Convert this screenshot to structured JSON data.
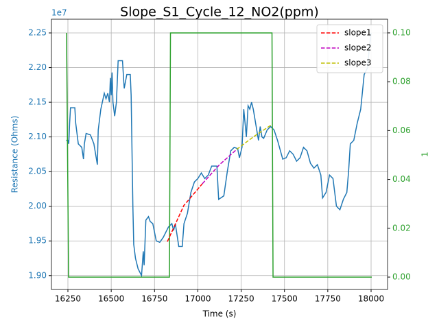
{
  "chart_data": {
    "type": "line",
    "title": "Slope_S1_Cycle_12_NO2(ppm)",
    "xlabel": "Time (s)",
    "ylabel": "Resistance (Ohms)",
    "y2label": "1",
    "y_offset_label": "1e7",
    "grid": true,
    "legend": "upper right",
    "xlim": [
      16155,
      18095
    ],
    "ylim": [
      1.88,
      2.2698
    ],
    "y2lim": [
      -0.00506,
      0.1056
    ],
    "xticks": [
      16250,
      16500,
      16750,
      17000,
      17250,
      17500,
      17750,
      18000
    ],
    "yticks": [
      {
        "value": 1.9,
        "label": "1.90"
      },
      {
        "value": 1.95,
        "label": "1.95"
      },
      {
        "value": 2.0,
        "label": "2.00"
      },
      {
        "value": 2.05,
        "label": "2.05"
      },
      {
        "value": 2.1,
        "label": "2.10"
      },
      {
        "value": 2.15,
        "label": "2.15"
      },
      {
        "value": 2.2,
        "label": "2.20"
      },
      {
        "value": 2.25,
        "label": "2.25"
      }
    ],
    "y2ticks": [
      {
        "value": 0,
        "label": "0.00"
      },
      {
        "value": 0.02,
        "label": "0.02"
      },
      {
        "value": 0.04,
        "label": "0.04"
      },
      {
        "value": 0.06,
        "label": "0.06"
      },
      {
        "value": 0.08,
        "label": "0.08"
      },
      {
        "value": 0.1,
        "label": "0.10"
      }
    ],
    "series": [
      {
        "color": "#1f77b4",
        "dash": false,
        "x": [
          16240,
          16250,
          16255,
          16260,
          16265,
          16290,
          16295,
          16310,
          16330,
          16340,
          16345,
          16355,
          16380,
          16400,
          16410,
          16420,
          16425,
          16440,
          16460,
          16470,
          16480,
          16490,
          16495,
          16500,
          16505,
          16510,
          16520,
          16530,
          16540,
          16565,
          16575,
          16590,
          16610,
          16615,
          16625,
          16630,
          16640,
          16655,
          16665,
          16675,
          16685,
          16690,
          16700,
          16715,
          16725,
          16740,
          16760,
          16780,
          16800,
          16830,
          16850,
          16860,
          16870,
          16890,
          16910,
          16920,
          16940,
          16960,
          16980,
          17000,
          17020,
          17040,
          17060,
          17080,
          17110,
          17120,
          17150,
          17170,
          17190,
          17210,
          17230,
          17240,
          17255,
          17265,
          17280,
          17290,
          17300,
          17310,
          17320,
          17340,
          17350,
          17360,
          17370,
          17380,
          17400,
          17420,
          17440,
          17460,
          17490,
          17510,
          17530,
          17550,
          17570,
          17590,
          17610,
          17630,
          17650,
          17670,
          17690,
          17710,
          17720,
          17740,
          17760,
          17780,
          17800,
          17820,
          17840,
          17860,
          17870,
          17880,
          17900,
          17920,
          17940,
          17960,
          17980,
          17990,
          18000
        ],
        "values": [
          2.095,
          2.095,
          2.09,
          2.12,
          2.142,
          2.142,
          2.12,
          2.09,
          2.085,
          2.068,
          2.09,
          2.105,
          2.103,
          2.09,
          2.075,
          2.06,
          2.11,
          2.14,
          2.163,
          2.155,
          2.163,
          2.15,
          2.185,
          2.16,
          2.193,
          2.15,
          2.13,
          2.15,
          2.21,
          2.21,
          2.17,
          2.19,
          2.19,
          2.16,
          2.0,
          1.945,
          1.925,
          1.91,
          1.905,
          1.9,
          1.935,
          1.915,
          1.98,
          1.985,
          1.978,
          1.975,
          1.95,
          1.948,
          1.955,
          1.97,
          1.975,
          1.965,
          1.975,
          1.942,
          1.942,
          1.975,
          1.99,
          2.02,
          2.035,
          2.04,
          2.048,
          2.04,
          2.045,
          2.058,
          2.058,
          2.01,
          2.015,
          2.05,
          2.08,
          2.085,
          2.083,
          2.07,
          2.085,
          2.14,
          2.1,
          2.145,
          2.14,
          2.15,
          2.14,
          2.11,
          2.095,
          2.115,
          2.1,
          2.098,
          2.11,
          2.115,
          2.11,
          2.095,
          2.068,
          2.07,
          2.08,
          2.075,
          2.065,
          2.07,
          2.085,
          2.08,
          2.062,
          2.055,
          2.06,
          2.045,
          2.012,
          2.02,
          2.045,
          2.04,
          2.0,
          1.995,
          2.01,
          2.02,
          2.05,
          2.09,
          2.095,
          2.12,
          2.14,
          2.19,
          2.2,
          2.23,
          2.25
        ]
      },
      {
        "color": "#2ca02c",
        "dash": false,
        "axis": "y2",
        "x": [
          16242,
          16254,
          16836,
          16842,
          17428,
          17434,
          18004
        ],
        "values": [
          0.1,
          0,
          0,
          0.1,
          0.1,
          0,
          0
        ]
      },
      {
        "name": "slope1",
        "color": "#ff0000",
        "dash": true,
        "x": [
          16824,
          16919,
          17026
        ],
        "values": [
          1.949,
          2.001,
          2.0325
        ]
      },
      {
        "name": "slope2",
        "color": "#bf00bf",
        "dash": true,
        "x": [
          17026,
          17125,
          17224
        ],
        "values": [
          2.0325,
          2.06,
          2.082
        ]
      },
      {
        "name": "slope3",
        "color": "#bfbf00",
        "dash": true,
        "x": [
          17224,
          17320,
          17422
        ],
        "values": [
          2.082,
          2.1,
          2.117
        ]
      }
    ]
  }
}
